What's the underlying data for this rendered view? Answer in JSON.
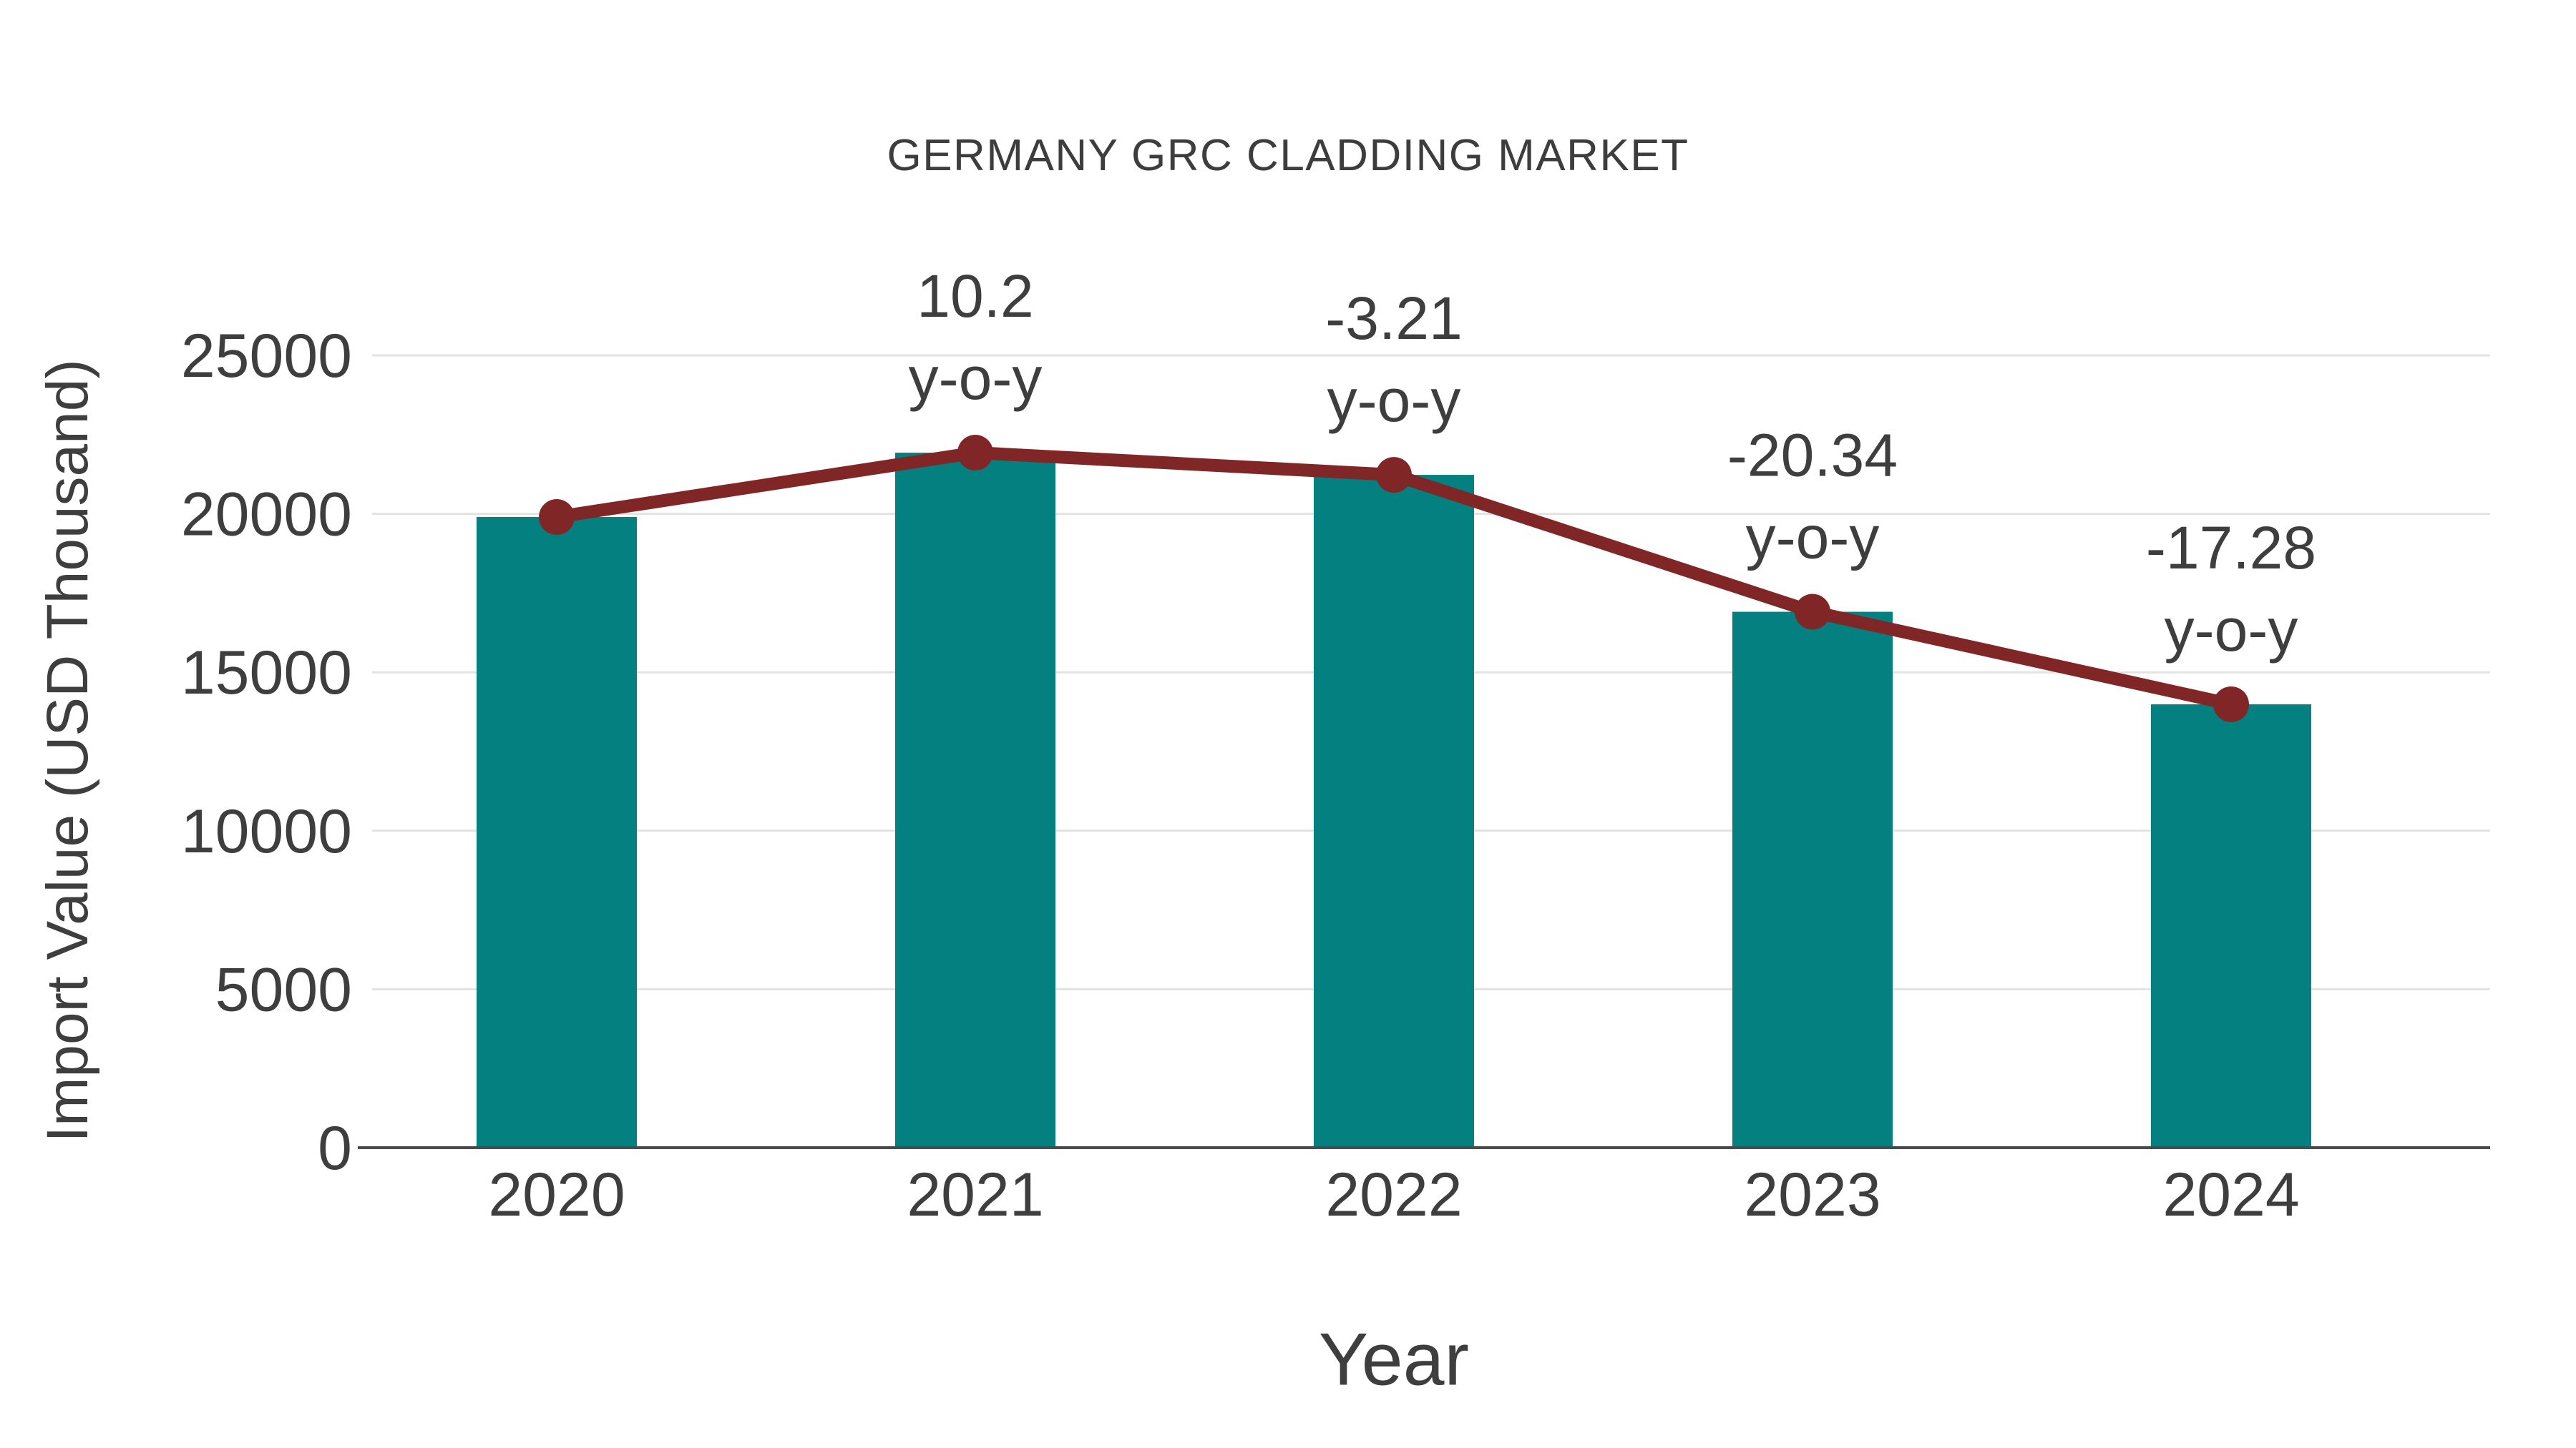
{
  "chart_data": {
    "type": "bar",
    "title": "GERMANY GRC CLADDING MARKET",
    "xlabel": "Year",
    "ylabel": "Import Value (USD Thousand)",
    "categories": [
      "2020",
      "2021",
      "2022",
      "2023",
      "2024"
    ],
    "series": [
      {
        "name": "Import Value bars",
        "type": "bar",
        "color": "#058080",
        "values": [
          19900,
          21930,
          21230,
          16910,
          13990
        ]
      },
      {
        "name": "Import Value trend line",
        "type": "line",
        "color": "#812626",
        "values": [
          19900,
          21930,
          21230,
          16910,
          13990
        ]
      }
    ],
    "annotations": [
      {
        "category": "2021",
        "value_label": "10.2",
        "unit_label": "y-o-y"
      },
      {
        "category": "2022",
        "value_label": "-3.21",
        "unit_label": "y-o-y"
      },
      {
        "category": "2023",
        "value_label": "-20.34",
        "unit_label": "y-o-y"
      },
      {
        "category": "2024",
        "value_label": "-17.28",
        "unit_label": "y-o-y"
      }
    ],
    "yticks": [
      0,
      5000,
      10000,
      15000,
      20000,
      25000
    ],
    "ylim": [
      0,
      25000
    ],
    "grid": "horizontal",
    "legend": "none",
    "colors": {
      "background": "#ffffff",
      "grid_line": "#e3e3e3",
      "axis_line": "#4a4a4a",
      "text": "#3e3e3e"
    }
  }
}
